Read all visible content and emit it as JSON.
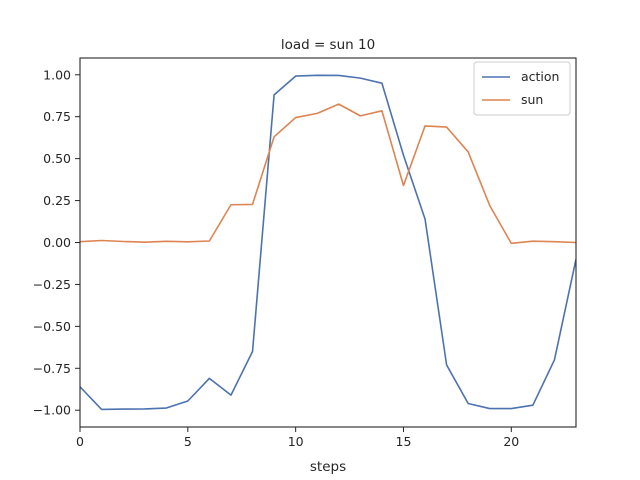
{
  "chart_data": {
    "type": "line",
    "title": "load = sun 10",
    "xlabel": "steps",
    "ylabel": "",
    "xlim": [
      0,
      23
    ],
    "ylim": [
      -1.1,
      1.1
    ],
    "xticks": [
      0,
      5,
      10,
      15,
      20
    ],
    "yticks": [
      -1.0,
      -0.75,
      -0.5,
      -0.25,
      0.0,
      0.25,
      0.5,
      0.75,
      1.0
    ],
    "ytick_labels": [
      "−1.00",
      "−0.75",
      "−0.50",
      "−0.25",
      "0.00",
      "0.25",
      "0.50",
      "0.75",
      "1.00"
    ],
    "grid": false,
    "legend_position": "top-right",
    "x": [
      0,
      1,
      2,
      3,
      4,
      5,
      6,
      7,
      8,
      9,
      10,
      11,
      12,
      13,
      14,
      15,
      16,
      17,
      18,
      19,
      20,
      21,
      22,
      23
    ],
    "series": [
      {
        "name": "action",
        "color": "#4c72b0",
        "values": [
          -0.86,
          -0.995,
          -0.993,
          -0.992,
          -0.987,
          -0.945,
          -0.81,
          -0.91,
          -0.65,
          0.88,
          0.992,
          0.997,
          0.996,
          0.98,
          0.95,
          0.52,
          0.14,
          -0.73,
          -0.96,
          -0.99,
          -0.99,
          -0.97,
          -0.7,
          -0.1
        ]
      },
      {
        "name": "sun",
        "color": "#dd8452",
        "values": [
          0.005,
          0.012,
          0.006,
          0.002,
          0.007,
          0.004,
          0.009,
          0.225,
          0.227,
          0.63,
          0.745,
          0.77,
          0.825,
          0.755,
          0.785,
          0.34,
          0.695,
          0.688,
          0.54,
          0.22,
          -0.005,
          0.008,
          0.005,
          0.0
        ]
      }
    ]
  }
}
